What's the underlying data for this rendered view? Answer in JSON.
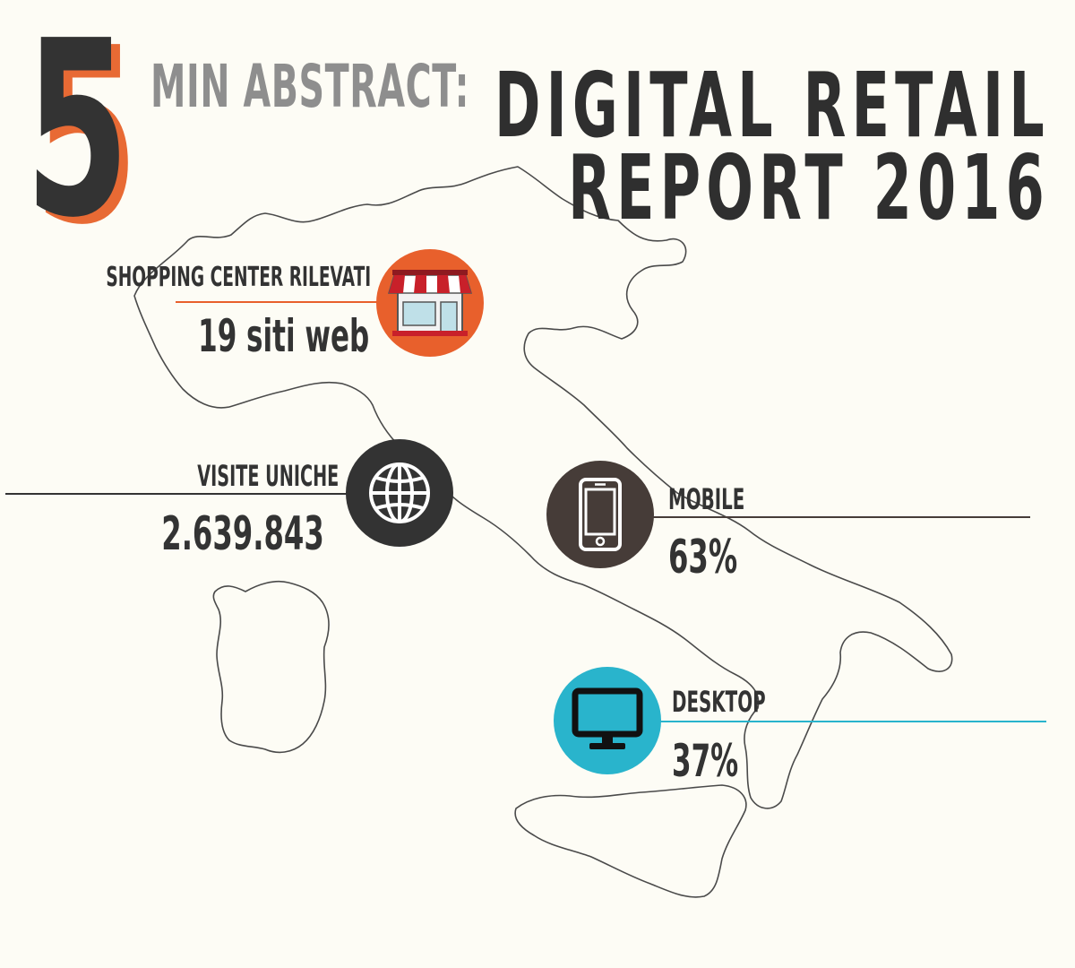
{
  "header": {
    "big_number": "5",
    "subtitle": "MIN ABSTRACT:",
    "title_line1": "DIGITAL RETAIL",
    "title_line2": "REPORT 2016"
  },
  "stats": [
    {
      "label": "SHOPPING CENTER RILEVATI",
      "value": "19 siti web",
      "icon": "storefront-icon",
      "color": "#e8602c"
    },
    {
      "label": "VISITE UNICHE",
      "value": "2.639.843",
      "icon": "globe-icon",
      "color": "#333333"
    },
    {
      "label": "MOBILE",
      "value": "63%",
      "icon": "smartphone-icon",
      "color": "#463c38"
    },
    {
      "label": "DESKTOP",
      "value": "37%",
      "icon": "monitor-icon",
      "color": "#29b4cc"
    }
  ],
  "colors": {
    "orange": "#e8602c",
    "dark": "#333333",
    "brown": "#463c38",
    "cyan": "#29b4cc",
    "grey": "#8e8e8e",
    "background": "#fdfcf5"
  }
}
